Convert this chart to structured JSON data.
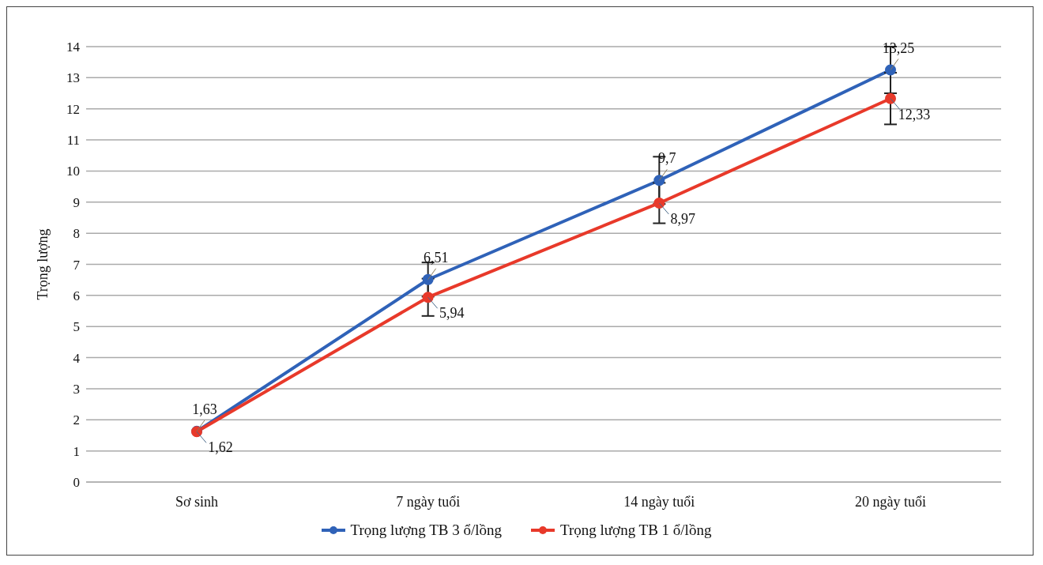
{
  "chart_data": {
    "type": "line",
    "ylabel": "Trọng lượng",
    "categories": [
      "Sơ sinh",
      "7 ngày tuổi",
      "14 ngày tuổi",
      "20 ngày tuổi"
    ],
    "series": [
      {
        "name": "Trọng lượng TB 3 ổ/lồng",
        "color": "#2f62b8",
        "values": [
          1.63,
          6.51,
          9.7,
          13.25
        ],
        "errors": [
          null,
          0.55,
          0.76,
          0.75
        ],
        "value_labels": [
          "1,63",
          "6,51",
          "9,7",
          "13,25"
        ]
      },
      {
        "name": "Trọng lượng TB 1 ổ/lồng",
        "color": "#e8392a",
        "values": [
          1.62,
          5.94,
          8.97,
          12.33
        ],
        "errors": [
          null,
          0.6,
          0.65,
          0.83
        ],
        "value_labels": [
          "1,62",
          "5,94",
          "8,97",
          "12,33"
        ]
      }
    ],
    "ylim": [
      0,
      14
    ],
    "yticks": [
      0,
      1,
      2,
      3,
      4,
      5,
      6,
      7,
      8,
      9,
      10,
      11,
      12,
      13,
      14
    ],
    "grid": "y",
    "legend": "bottom",
    "marker": "circle",
    "line_style": "solid"
  }
}
